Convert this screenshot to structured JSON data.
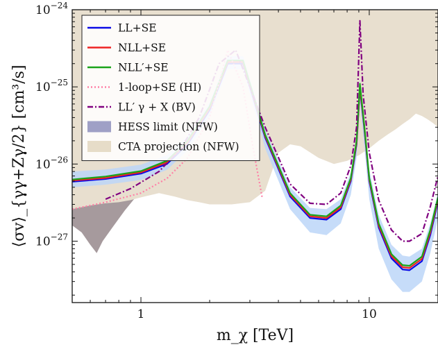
{
  "chart_data": {
    "type": "line",
    "title": "",
    "xlabel": "m_χ [TeV]",
    "ylabel": "⟨σv⟩_{γγ+Zγ/2} [cm³/s]",
    "xscale": "log",
    "yscale": "log",
    "xlim": [
      0.5,
      20
    ],
    "ylim": [
      1.6e-28,
      1e-24
    ],
    "x_ticks": [
      {
        "value": 1,
        "label": "1"
      },
      {
        "value": 10,
        "label": "10"
      }
    ],
    "y_ticks": [
      {
        "value": 1e-27,
        "base": "10",
        "exp": "−27"
      },
      {
        "value": 1e-26,
        "base": "10",
        "exp": "−26"
      },
      {
        "value": 1e-25,
        "base": "10",
        "exp": "−25"
      },
      {
        "value": 1e-24,
        "base": "10",
        "exp": "−24"
      }
    ],
    "grid": false,
    "legend_position": "top-left",
    "legend": [
      {
        "label": "LL+SE",
        "kind": "line",
        "color": "#0a0ae6",
        "dash": "solid"
      },
      {
        "label": "NLL+SE",
        "kind": "line",
        "color": "#ee2222",
        "dash": "solid"
      },
      {
        "label": "NLL′+SE",
        "kind": "line",
        "color": "#1aa31a",
        "dash": "solid"
      },
      {
        "label": "1-loop+SE (HI)",
        "kind": "line",
        "color": "#ff7fa6",
        "dash": "dotted"
      },
      {
        "label": "LL′ γ + X (BV)",
        "kind": "line",
        "color": "#800080",
        "dash": "dashdot"
      },
      {
        "label": "HESS limit (NFW)",
        "kind": "patch",
        "color": "#9fa0c6"
      },
      {
        "label": "CTA projection (NFW)",
        "kind": "patch",
        "color": "#e6dcc8"
      }
    ],
    "series": [
      {
        "name": "LL+SE",
        "color": "#0a0ae6",
        "x": [
          0.5,
          0.7,
          1.0,
          1.3,
          1.6,
          2.0,
          2.4,
          2.8,
          3.5,
          4.5,
          5.5,
          6.5,
          7.5,
          8.3,
          8.8,
          9.1,
          9.5,
          10.0,
          11.0,
          12.5,
          14.0,
          15.0,
          17.0,
          18.5,
          20.0
        ],
        "y": [
          5.9e-27,
          6.4e-27,
          7.5e-27,
          1e-26,
          1.8e-26,
          5e-26,
          2e-25,
          2e-25,
          2.2e-26,
          3.8e-27,
          2e-27,
          1.9e-27,
          2.6e-27,
          6e-27,
          1.8e-26,
          9.5e-26,
          3e-26,
          6e-27,
          1.5e-27,
          6e-28,
          4.3e-28,
          4.2e-28,
          5.5e-28,
          1.2e-27,
          3.3e-27
        ]
      },
      {
        "name": "NLL+SE",
        "color": "#ee2222",
        "x": [
          0.5,
          0.7,
          1.0,
          1.3,
          1.6,
          2.0,
          2.4,
          2.8,
          3.5,
          4.5,
          5.5,
          6.5,
          7.5,
          8.3,
          8.8,
          9.1,
          9.5,
          10.0,
          11.0,
          12.5,
          14.0,
          15.0,
          17.0,
          18.5,
          20.0
        ],
        "y": [
          6.1e-27,
          6.6e-27,
          7.8e-27,
          1.05e-26,
          1.9e-26,
          5.3e-26,
          2.1e-25,
          2.1e-25,
          2.3e-26,
          4e-27,
          2.1e-27,
          2e-27,
          2.75e-27,
          6.3e-27,
          1.9e-26,
          1e-25,
          3.15e-26,
          6.3e-27,
          1.6e-27,
          6.4e-28,
          4.6e-28,
          4.5e-28,
          5.9e-28,
          1.3e-27,
          3.5e-27
        ]
      },
      {
        "name": "NLL′+SE",
        "color": "#1aa31a",
        "x": [
          0.5,
          0.7,
          1.0,
          1.3,
          1.6,
          2.0,
          2.4,
          2.8,
          3.5,
          4.5,
          5.5,
          6.5,
          7.5,
          8.3,
          8.8,
          9.1,
          9.5,
          10.0,
          11.0,
          12.5,
          14.0,
          15.0,
          17.0,
          18.5,
          20.0
        ],
        "y": [
          6.3e-27,
          6.9e-27,
          8.1e-27,
          1.1e-26,
          2e-26,
          5.6e-26,
          2.2e-25,
          2.2e-25,
          2.4e-26,
          4.2e-27,
          2.2e-27,
          2.1e-27,
          2.9e-27,
          6.6e-27,
          2e-26,
          1.1e-25,
          3.3e-26,
          6.6e-27,
          1.7e-27,
          6.8e-28,
          4.9e-28,
          4.8e-28,
          6.3e-28,
          1.4e-27,
          3.7e-27
        ]
      },
      {
        "name": "1-loop+SE (HI)",
        "color": "#ff7fa6",
        "x": [
          0.5,
          0.7,
          1.0,
          1.3,
          1.6,
          2.0,
          2.4,
          2.8,
          3.1,
          3.4
        ],
        "y": [
          2.6e-27,
          3.2e-27,
          4.2e-27,
          6.5e-27,
          1.2e-26,
          4e-26,
          3e-25,
          1e-25,
          1.6e-26,
          3.6e-27
        ]
      },
      {
        "name": "LL′ γ + X (BV)",
        "color": "#800080",
        "x": [
          0.7,
          0.9,
          1.2,
          1.5,
          1.8,
          2.2,
          2.6,
          3.0,
          3.5,
          4.5,
          5.5,
          6.5,
          7.5,
          8.3,
          8.8,
          9.1,
          9.4,
          10.0,
          11.0,
          12.5,
          14.0,
          15.0,
          17.0,
          18.5,
          20.0
        ],
        "y": [
          3.5e-27,
          4.8e-27,
          8e-27,
          1.6e-26,
          4e-26,
          2e-25,
          3e-25,
          1e-25,
          3e-26,
          5.5e-27,
          3.1e-27,
          3e-27,
          4.2e-27,
          9.5e-27,
          3e-26,
          7.2e-25,
          8e-26,
          1.4e-26,
          3.4e-27,
          1.4e-27,
          1e-27,
          1e-27,
          1.25e-27,
          2.8e-27,
          7e-27
        ]
      }
    ],
    "bands": [
      {
        "name": "LL+SE uncertainty",
        "color": "#bcd6f8",
        "x": [
          0.5,
          0.7,
          1.0,
          1.3,
          1.6,
          2.0,
          2.4,
          2.8,
          3.5,
          4.5,
          5.5,
          6.5,
          7.5,
          8.3,
          8.8,
          9.1,
          9.5,
          10.0,
          11.0,
          12.5,
          14.0,
          15.0,
          17.0,
          18.5,
          20.0
        ],
        "low": [
          5e-27,
          5.4e-27,
          6.2e-27,
          8.4e-27,
          1.5e-26,
          4.2e-26,
          1.7e-25,
          1.7e-25,
          1.6e-26,
          2.6e-27,
          1.3e-27,
          1.2e-27,
          1.7e-27,
          4e-27,
          1.2e-26,
          6.5e-26,
          1.8e-26,
          3.5e-27,
          8e-28,
          3.2e-28,
          2.2e-28,
          2.2e-28,
          3e-28,
          7e-28,
          2e-27
        ],
        "high": [
          8e-27,
          8.5e-27,
          9.8e-27,
          1.3e-26,
          2.3e-26,
          6.3e-26,
          2.5e-25,
          2.5e-25,
          2.8e-26,
          5e-27,
          2.7e-27,
          2.6e-27,
          3.5e-27,
          7.8e-27,
          2.3e-26,
          1.25e-25,
          4e-26,
          8.5e-27,
          2.2e-27,
          9e-28,
          6.5e-28,
          6.3e-28,
          8e-28,
          1.7e-27,
          4.3e-27
        ]
      }
    ],
    "regions": [
      {
        "name": "HESS limit (NFW)",
        "color": "#a69a9d",
        "x": [
          0.5,
          0.55,
          0.6,
          0.64,
          0.68,
          0.75,
          0.85,
          1.0,
          1.2,
          1.4,
          1.6,
          1.8,
          2.0,
          2.2,
          2.4,
          2.7,
          3.0,
          3.3,
          3.6,
          4.0,
          4.5,
          5.0,
          5.5,
          6.0,
          6.5,
          7.0,
          7.5,
          8.0,
          8.5,
          9.0,
          9.5,
          10.0,
          11.0,
          12.0,
          13.0,
          14.0,
          15.0,
          16.0,
          17.0,
          18.0,
          19.0,
          20.0
        ],
        "y": [
          1.6e-27,
          1.3e-27,
          9e-28,
          7e-28,
          1e-27,
          1.5e-27,
          2.5e-27,
          4.5e-27,
          6e-27,
          7.5e-27,
          8.5e-27,
          9.5e-27,
          1.1e-26,
          1.2e-26,
          1.2e-26,
          9e-27,
          1.1e-26,
          1.6e-26,
          2e-26,
          2.4e-26,
          2.8e-26,
          3.2e-26,
          3.4e-26,
          3.6e-26,
          3.7e-26,
          3.8e-26,
          3.9e-26,
          4e-26,
          4.1e-26,
          4.2e-26,
          4.3e-26,
          4.4e-26,
          4.5e-26,
          4.6e-26,
          4.7e-26,
          4.8e-26,
          4.9e-26,
          5e-26,
          5e-26,
          5.1e-26,
          5.1e-26,
          5.2e-26
        ]
      },
      {
        "name": "CTA projection (NFW)",
        "color": "#e8dfcf",
        "x": [
          0.5,
          0.6,
          0.7,
          0.8,
          0.9,
          1.0,
          1.2,
          1.4,
          1.6,
          1.8,
          2.0,
          2.5,
          3.0,
          3.5,
          4.0,
          4.5,
          5.0,
          6.0,
          7.0,
          8.0,
          9.0,
          10.0,
          11.0,
          12.0,
          13.0,
          14.0,
          15.0,
          16.0,
          17.0,
          18.0,
          19.0,
          20.0
        ],
        "y": [
          2.6e-27,
          2.9e-27,
          3.1e-27,
          3.2e-27,
          3.4e-27,
          3.7e-27,
          4.2e-27,
          3.8e-27,
          3.4e-27,
          3.2e-27,
          3e-27,
          3e-27,
          3.2e-27,
          4.5e-27,
          1.4e-26,
          1.8e-26,
          1.7e-26,
          1.2e-26,
          1e-26,
          1.1e-26,
          1.3e-26,
          1.6e-26,
          2e-26,
          2.4e-26,
          2.8e-26,
          3.3e-26,
          3.8e-26,
          4.5e-26,
          4.2e-26,
          3.8e-26,
          3.4e-26,
          3e-26
        ]
      }
    ]
  }
}
